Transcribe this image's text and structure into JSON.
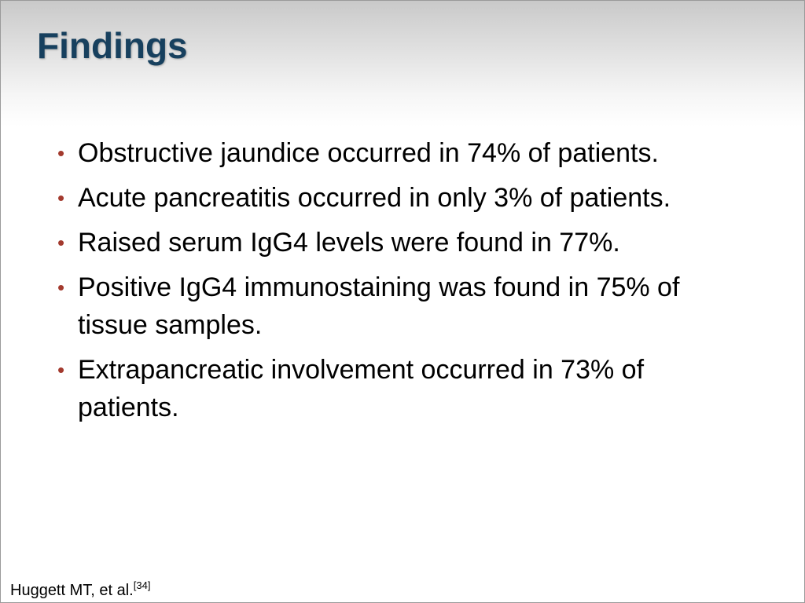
{
  "header": {
    "title": "Findings"
  },
  "bullets": [
    "Obstructive jaundice occurred in 74% of patients.",
    "Acute pancreatitis occurred in only 3% of patients.",
    "Raised serum IgG4 levels were found in 77%.",
    "Positive IgG4 immunostaining was found in 75% of tissue samples.",
    "Extrapancreatic involvement occurred in 73% of patients."
  ],
  "citation": {
    "text": "Huggett MT, et al.",
    "reference": "[34]"
  }
}
